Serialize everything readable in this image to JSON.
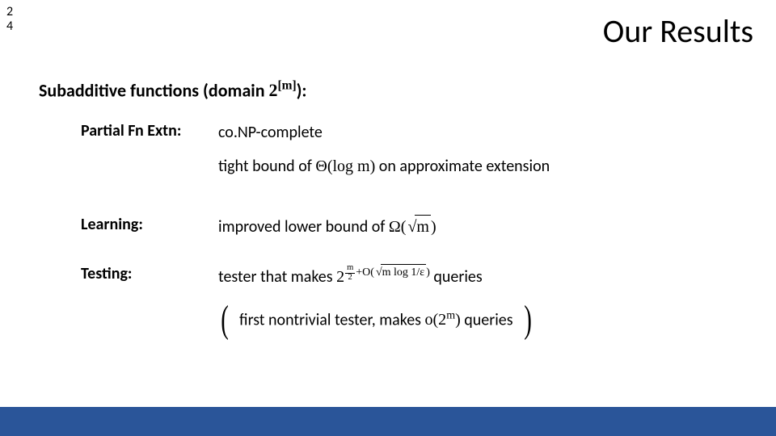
{
  "slide": {
    "number_line1": "2",
    "number_line2": "4",
    "title": "Our Results"
  },
  "heading": {
    "prefix_bold": "Subadditive functions (domain ",
    "domain_base": "2",
    "domain_exp": "[m]",
    "suffix_bold": "):"
  },
  "rows": {
    "partial": {
      "label": "Partial Fn Extn:",
      "line1": "co.NP-complete",
      "line2_pre": "tight bound of ",
      "line2_theta": "Θ(log m)",
      "line2_post": " on approximate extension"
    },
    "learning": {
      "label": "Learning:",
      "line1_pre": "improved lower bound of ",
      "line1_omega_open": "Ω(",
      "line1_rad": "m",
      "line1_close": ")"
    },
    "testing": {
      "label": "Testing:",
      "line1_pre": "tester that makes ",
      "exp_base": "2",
      "exp_frac_num": "m",
      "exp_frac_den": "2",
      "exp_plus": "+O(",
      "exp_rad": "m log 1/ε",
      "exp_close": ")",
      "line1_post": " queries",
      "paren_pre": "first nontrivial tester, makes ",
      "paren_o": "o(2",
      "paren_exp": "m",
      "paren_close": ")",
      "paren_post": " queries"
    }
  },
  "colors": {
    "footer": "#2a5599",
    "text": "#000000",
    "bg": "#ffffff"
  }
}
